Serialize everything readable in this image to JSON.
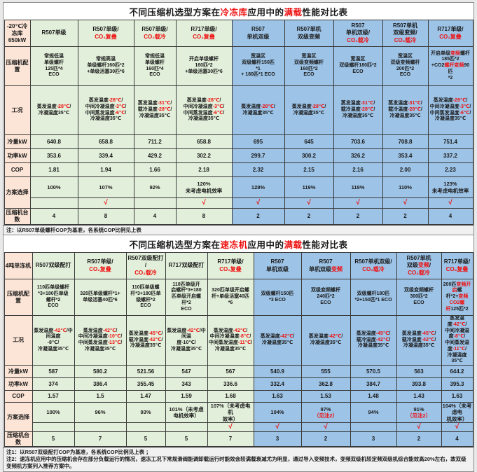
{
  "colors": {
    "accent_red": "#ff0000",
    "label_bg": "#fce4d6",
    "left_group_bg": "#e2efda",
    "right_group_bg": "#9dc3e6"
  },
  "tables": [
    {
      "title": [
        {
          "t": "不同压缩机选型方案在"
        },
        {
          "t": "冷冻库",
          "r": 1
        },
        {
          "t": "应用中的"
        },
        {
          "t": "满载",
          "r": 1
        },
        {
          "t": "性能对比表"
        }
      ],
      "corner": "-20℃冷冻库650kW",
      "row_labels": {
        "config": "压缩机配置",
        "condition": "工况",
        "cooling": "冷量kW",
        "power": "功率kW",
        "cop": "COP",
        "scheme": "方案选择",
        "units": "压缩机台数"
      },
      "notes": [
        [
          {
            "t": "注：以R507单级螺杆COP为基准，各系统COP比例见上表"
          }
        ]
      ],
      "columns": [
        {
          "blue": false,
          "header": [
            {
              "t": "R507单级"
            }
          ],
          "config": [
            {
              "t": "常规低温\n单级螺杆\n125匹*4\nECO"
            }
          ],
          "cond": [
            {
              "t": "蒸发温度"
            },
            {
              "t": "-28℃",
              "r": 1
            },
            {
              "t": "/\n冷凝温度35℃"
            }
          ],
          "cooling": "640.8",
          "power": "353.6",
          "cop": "1.81",
          "percent": [
            {
              "t": "100%"
            }
          ],
          "check": "",
          "units": "4"
        },
        {
          "blue": false,
          "header": [
            {
              "t": "R507单级/\n"
            },
            {
              "t": "CO₂复叠",
              "r": 1
            }
          ],
          "config": [
            {
              "t": "常规高温\n单级螺杆160匹*2\n+单级活塞30匹*6"
            }
          ],
          "cond": [
            {
              "t": "蒸发温度"
            },
            {
              "t": "-28℃",
              "r": 1
            },
            {
              "t": "/\n中间冷凝温度"
            },
            {
              "t": "-3℃",
              "r": 1
            },
            {
              "t": "/\n中间蒸发温度"
            },
            {
              "t": "-6℃",
              "r": 1
            },
            {
              "t": "/\n冷凝温度35℃"
            }
          ],
          "cooling": "658.8",
          "power": "339.4",
          "cop": "1.94",
          "percent": [
            {
              "t": "107%"
            }
          ],
          "check": "√",
          "units": "8"
        },
        {
          "blue": false,
          "header": [
            {
              "t": "R507单级/\n"
            },
            {
              "t": "CO₂载冷",
              "r": 1
            }
          ],
          "config": [
            {
              "t": "常规低温\n单级螺杆\n160匹*4\nECO"
            }
          ],
          "cond": [
            {
              "t": "蒸发温度"
            },
            {
              "t": "-31℃",
              "r": 1
            },
            {
              "t": "/\n载冷温度"
            },
            {
              "t": "-28℃",
              "r": 1
            },
            {
              "t": "/\n冷凝温度35℃"
            }
          ],
          "cooling": "711.2",
          "power": "429.2",
          "cop": "1.66",
          "percent": [
            {
              "t": "92%"
            }
          ],
          "check": "",
          "units": "4"
        },
        {
          "blue": false,
          "header": [
            {
              "t": "R717单级/\n"
            },
            {
              "t": "CO₂复叠",
              "r": 1
            }
          ],
          "config": [
            {
              "t": "开启单级螺杆\n160匹*2\n+单级活塞30匹*6"
            }
          ],
          "cond": [
            {
              "t": "蒸发温度"
            },
            {
              "t": "-28℃",
              "r": 1
            },
            {
              "t": "/\n中间冷凝温度"
            },
            {
              "t": "-3℃",
              "r": 1
            },
            {
              "t": "/\n中间蒸发温度"
            },
            {
              "t": "-6℃",
              "r": 1
            },
            {
              "t": "/\n冷凝温度35℃"
            }
          ],
          "cooling": "658.8",
          "power": "302.2",
          "cop": "2.18",
          "percent": [
            {
              "t": "120%\n未考虑电机效率"
            }
          ],
          "check": "√",
          "units": "8"
        },
        {
          "blue": true,
          "header": [
            {
              "t": "R507\n单机双级"
            }
          ],
          "config": [
            {
              "t": "宽温区\n双级螺杆150匹\n*1\n+ 180匹*1  ECO"
            }
          ],
          "cond": [
            {
              "t": "蒸发温度"
            },
            {
              "t": "-28℃",
              "r": 1
            },
            {
              "t": "/\n冷凝温度35℃"
            }
          ],
          "cooling": "695",
          "power": "299.7",
          "cop": "2.32",
          "percent": [
            {
              "t": "128%"
            }
          ],
          "check": "√",
          "units": "2"
        },
        {
          "blue": true,
          "header": [
            {
              "t": "R507单机\n双级变频"
            }
          ],
          "config": [
            {
              "t": "宽温区\n双级变频螺杆\n160匹*2\nECO"
            }
          ],
          "cond": [
            {
              "t": "蒸发温度"
            },
            {
              "t": "-28℃",
              "r": 1
            },
            {
              "t": "/\n冷凝温度35℃"
            }
          ],
          "cooling": "645",
          "power": "300.2",
          "cop": "2.15",
          "percent": [
            {
              "t": "119%"
            }
          ],
          "check": "√",
          "units": "2"
        },
        {
          "blue": true,
          "header": [
            {
              "t": "R507\n单机双级/\n"
            },
            {
              "t": "CO₂载冷",
              "r": 1
            }
          ],
          "config": [
            {
              "t": "宽温区\n双级螺杆180匹*2\nECO"
            }
          ],
          "cond": [
            {
              "t": "蒸发温度"
            },
            {
              "t": "-31℃",
              "r": 1
            },
            {
              "t": "/\n载冷温度"
            },
            {
              "t": "-28℃",
              "r": 1
            },
            {
              "t": "/\n冷凝温度35℃"
            }
          ],
          "cooling": "703.6",
          "power": "326.2",
          "cop": "2.16",
          "percent": [
            {
              "t": "119%"
            }
          ],
          "check": "√",
          "units": "2"
        },
        {
          "blue": true,
          "header": [
            {
              "t": "R507单机\n双级变频/\n"
            },
            {
              "t": "CO₂载冷",
              "r": 1
            }
          ],
          "config": [
            {
              "t": "宽温区\n双级变频螺杆\n200匹*2\nECO"
            }
          ],
          "cond": [
            {
              "t": "蒸发温度"
            },
            {
              "t": "-31℃",
              "r": 1
            },
            {
              "t": "/\n载冷温度"
            },
            {
              "t": "-28℃",
              "r": 1
            },
            {
              "t": "/\n冷凝温度35℃"
            }
          ],
          "cooling": "708.8",
          "power": "353.4",
          "cop": "2.00",
          "percent": [
            {
              "t": "110%"
            }
          ],
          "check": "√",
          "units": "2"
        },
        {
          "blue": true,
          "header": [
            {
              "t": "R717单级/\n"
            },
            {
              "t": "CO₂复叠",
              "r": 1
            }
          ],
          "config": [
            {
              "t": "开启单级"
            },
            {
              "t": "变频",
              "r": 1
            },
            {
              "t": "螺杆\n185匹*2\n+CO2"
            },
            {
              "t": "螺杆变频",
              "r": 1
            },
            {
              "t": "90匹\n*2"
            }
          ],
          "cond": [
            {
              "t": "蒸发温度"
            },
            {
              "t": "-28℃",
              "r": 1
            },
            {
              "t": "/\n中间冷凝温度"
            },
            {
              "t": "-3℃",
              "r": 1
            },
            {
              "t": "/\n中间蒸发温度"
            },
            {
              "t": "-6℃",
              "r": 1
            },
            {
              "t": "/\n冷凝温度35℃"
            }
          ],
          "cooling": "751.4",
          "power": "337.2",
          "cop": "2.23",
          "percent": [
            {
              "t": "123%\n未考虑电机效率"
            }
          ],
          "check": "√",
          "units": "4"
        }
      ]
    },
    {
      "title": [
        {
          "t": "不同压缩机选型方案在"
        },
        {
          "t": "速冻机",
          "r": 1
        },
        {
          "t": "应用中的"
        },
        {
          "t": "满载",
          "r": 1
        },
        {
          "t": "性能对比表"
        }
      ],
      "corner": "4吨单冻机",
      "row_labels": {
        "config": "压缩机配置",
        "condition": "工况",
        "cooling": "冷量kW",
        "power": "功率kW",
        "cop": "COP",
        "scheme": "方案选择",
        "units": "压缩机台数"
      },
      "notes": [
        [
          {
            "t": "注1：以R507双级配打COP为基准，各系统COP比例见上表 ；"
          }
        ],
        [
          {
            "t": "注2：速冻机应用中的压缩机会存在部分负载运行的情况，速冻工况下常规滑阀能调卸载运行时能效会较满载衰减尤为明显，通过导入变频技术，变频双级机较定频双级机综合能效高20%左右，故双级变频机方案列入推荐方案中。"
          }
        ]
      ],
      "columns": [
        {
          "blue": false,
          "header": [
            {
              "t": "R507双级配打"
            }
          ],
          "config": [
            {
              "t": "110匹单级螺杆\n*3+180匹单级\n螺杆*2\nECO"
            }
          ],
          "cond": [
            {
              "t": "蒸发温度"
            },
            {
              "t": "-42℃",
              "r": 1
            },
            {
              "t": "/中间温度\n-8℃/\n冷凝温度35℃"
            }
          ],
          "cooling": "587",
          "power": "374",
          "cop": "1.57",
          "percent": [
            {
              "t": "100%"
            }
          ],
          "check": "",
          "units": "5"
        },
        {
          "blue": false,
          "header": [
            {
              "t": "R507单级/\n"
            },
            {
              "t": "CO₂复叠",
              "r": 1
            }
          ],
          "config": [
            {
              "t": "320匹单级螺杆*1+\n单级活塞40匹*6"
            }
          ],
          "cond": [
            {
              "t": "蒸发温度"
            },
            {
              "t": "-42℃",
              "r": 1
            },
            {
              "t": "/\n中间冷凝温度"
            },
            {
              "t": "-10℃",
              "r": 1
            },
            {
              "t": "/\n中间蒸发温度"
            },
            {
              "t": "-13℃",
              "r": 1
            },
            {
              "t": "/\n冷凝温度35℃"
            }
          ],
          "cooling": "580.2",
          "power": "386.4",
          "cop": "1.5",
          "percent": [
            {
              "t": "96%"
            }
          ],
          "check": "",
          "units": "7"
        },
        {
          "blue": false,
          "header": [
            {
              "t": "R507双级配打\n/\n"
            },
            {
              "t": "CO₂载冷",
              "r": 1
            }
          ],
          "config": [
            {
              "t": "110匹单级螺\n杆*3+180匹单\n级螺杆*2\nECO"
            }
          ],
          "cond": [
            {
              "t": "蒸发温度"
            },
            {
              "t": "-45℃",
              "r": 1
            },
            {
              "t": "/\n载冷温度"
            },
            {
              "t": "-42℃",
              "r": 1
            },
            {
              "t": "/\n冷凝温度35℃"
            }
          ],
          "cooling": "521.56",
          "power": "355.45",
          "cop": "1.47",
          "percent": [
            {
              "t": "93%"
            }
          ],
          "check": "",
          "units": "5"
        },
        {
          "blue": false,
          "header": [
            {
              "t": "R717双级配打"
            }
          ],
          "config": [
            {
              "t": "110匹单级开\n启螺杆*3+180\n匹单级开启螺\n杆*2\nECO"
            }
          ],
          "cond": [
            {
              "t": "蒸发温度"
            },
            {
              "t": "-42℃",
              "r": 1
            },
            {
              "t": "/中间温\n度-10℃/\n冷凝温度35℃"
            }
          ],
          "cooling": "547",
          "power": "343",
          "cop": "1.59",
          "percent": [
            {
              "t": "101%（未考虑\n电机效率）"
            }
          ],
          "check": "",
          "units": "5"
        },
        {
          "blue": false,
          "header": [
            {
              "t": "R717单级/\n"
            },
            {
              "t": "CO₂复叠",
              "r": 1
            }
          ],
          "config": [
            {
              "t": "320匹单级开启螺\n杆+单级活塞40匹\n*6"
            }
          ],
          "cond": [
            {
              "t": "蒸发温度"
            },
            {
              "t": "-42℃",
              "r": 1
            },
            {
              "t": "/\n中间冷凝温度"
            },
            {
              "t": "-8℃",
              "r": 1
            },
            {
              "t": "/\n中间蒸发温度"
            },
            {
              "t": "-11℃",
              "r": 1
            },
            {
              "t": "/\n冷凝温度35℃"
            }
          ],
          "cooling": "567",
          "power": "336.6",
          "cop": "1.68",
          "percent": [
            {
              "t": "107%（未考虑电机\n效率）"
            }
          ],
          "check": "√",
          "units": "7"
        },
        {
          "blue": true,
          "header": [
            {
              "t": "R507\n单机双级"
            }
          ],
          "config": [
            {
              "t": "双级螺杆150匹\n*3  ECO"
            }
          ],
          "cond": [
            {
              "t": "蒸发温度"
            },
            {
              "t": "-42℃",
              "r": 1
            },
            {
              "t": "/\n冷凝温度35℃"
            }
          ],
          "cooling": "540.9",
          "power": "332.4",
          "cop": "1.63",
          "percent": [
            {
              "t": "104%"
            }
          ],
          "check": "√",
          "units": "3"
        },
        {
          "blue": true,
          "header": [
            {
              "t": "R507\n单机双级"
            },
            {
              "t": "变频",
              "r": 1
            }
          ],
          "config": [
            {
              "t": "双级变频螺杆\n240匹*2\nECO"
            }
          ],
          "cond": [
            {
              "t": "蒸发温度"
            },
            {
              "t": "-42℃",
              "r": 1
            },
            {
              "t": "/\n冷凝温度35℃"
            }
          ],
          "cooling": "555",
          "power": "362.8",
          "cop": "1.53",
          "percent": [
            {
              "t": "97%\n"
            },
            {
              "t": "（见注2）",
              "r": 1
            }
          ],
          "check": "√",
          "units": "2"
        },
        {
          "blue": true,
          "header": [
            {
              "t": "R507单机双级/\n"
            },
            {
              "t": "CO₂载冷",
              "r": 1
            }
          ],
          "config": [
            {
              "t": "双级螺杆180匹\n*2+150匹*1  ECO"
            }
          ],
          "cond": [
            {
              "t": "蒸发温度"
            },
            {
              "t": "-45℃",
              "r": 1
            },
            {
              "t": "/\n载冷温度"
            },
            {
              "t": "-42℃",
              "r": 1
            },
            {
              "t": "/\n冷凝温度35℃"
            }
          ],
          "cooling": "570.5",
          "power": "384.7",
          "cop": "1.48",
          "percent": [
            {
              "t": "94%"
            }
          ],
          "check": "",
          "units": "3"
        },
        {
          "blue": true,
          "header": [
            {
              "t": "R507单机\n双级"
            },
            {
              "t": "变频",
              "r": 1
            },
            {
              "t": "/\n"
            },
            {
              "t": "CO₂载冷",
              "r": 1
            }
          ],
          "config": [
            {
              "t": "双级变频螺杆\n300匹*2\nECO"
            }
          ],
          "cond": [
            {
              "t": "蒸发温度"
            },
            {
              "t": "-45℃",
              "r": 1
            },
            {
              "t": "/\n载冷温度"
            },
            {
              "t": "-42℃",
              "r": 1
            },
            {
              "t": "/\n冷凝温度35℃"
            }
          ],
          "cooling": "563",
          "power": "393.8",
          "cop": "1.43",
          "percent": [
            {
              "t": "91%\n"
            },
            {
              "t": "（见注2）",
              "r": 1
            }
          ],
          "check": "√",
          "units": "2"
        },
        {
          "blue": true,
          "header": [
            {
              "t": "R717单级/\n"
            },
            {
              "t": "CO₂复叠",
              "r": 1
            }
          ],
          "config": [
            {
              "t": "200匹"
            },
            {
              "t": "变频开启",
              "r": 1
            },
            {
              "t": "螺\n杆*2+"
            },
            {
              "t": "变频CO2螺\n杆",
              "r": 1
            },
            {
              "t": "125匹*2"
            }
          ],
          "cond": [
            {
              "t": "蒸发温度"
            },
            {
              "t": "-42℃",
              "r": 1
            },
            {
              "t": "/\n中间冷凝温度"
            },
            {
              "t": "-8℃",
              "r": 1
            },
            {
              "t": "/\n中间蒸发温度"
            },
            {
              "t": "-11℃",
              "r": 1
            },
            {
              "t": "/\n冷凝温度35℃"
            }
          ],
          "cooling": "644.2",
          "power": "395.3",
          "cop": "1.63",
          "percent": [
            {
              "t": "104%（未考虑电\n机效率）"
            }
          ],
          "check": "√",
          "units": "4"
        }
      ]
    }
  ]
}
